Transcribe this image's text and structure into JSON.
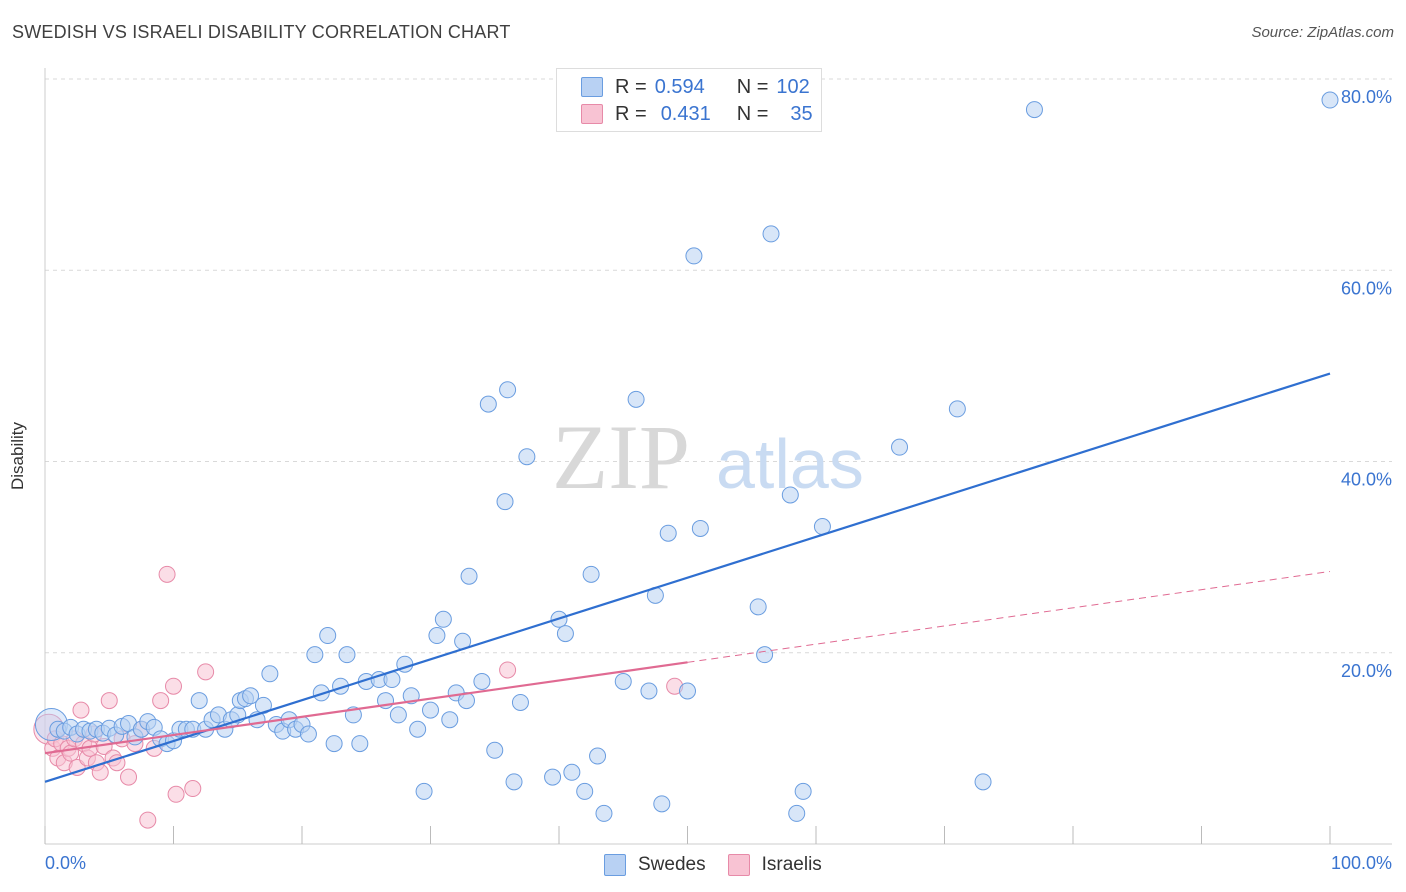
{
  "header": {
    "title": "SWEDISH VS ISRAELI DISABILITY CORRELATION CHART",
    "source": "Source: ZipAtlas.com"
  },
  "watermark": {
    "zip": "ZIP",
    "atlas": "atlas"
  },
  "legend": {
    "rows": [
      {
        "r_label": "R =",
        "r_value": "0.594",
        "n_label": "N =",
        "n_value": "102"
      },
      {
        "r_label": "R =",
        "r_value": "0.431",
        "n_label": "N =",
        "n_value": "35"
      }
    ]
  },
  "bottom_legend": {
    "items": [
      "Swedes",
      "Israelis"
    ]
  },
  "colors": {
    "swedes_fill": "#b8d1f3",
    "swedes_stroke": "#6a9de0",
    "swedes_line": "#2f6fd0",
    "israelis_fill": "#f8c3d3",
    "israelis_stroke": "#e78aa8",
    "israelis_line": "#e06a92",
    "grid": "#d9d9d9",
    "tick_label": "#3a74d0"
  },
  "chart_data": {
    "type": "scatter",
    "title": "SWEDISH VS ISRAELI DISABILITY CORRELATION CHART",
    "xlabel": "",
    "ylabel": "Disability",
    "xlim": [
      0,
      100
    ],
    "ylim": [
      0,
      80
    ],
    "x_tick_labels": [
      {
        "value": 0,
        "label": "0.0%"
      },
      {
        "value": 100,
        "label": "100.0%"
      }
    ],
    "y_tick_labels": [
      {
        "value": 20,
        "label": "20.0%"
      },
      {
        "value": 40,
        "label": "40.0%"
      },
      {
        "value": 60,
        "label": "60.0%"
      },
      {
        "value": 80,
        "label": "80.0%"
      }
    ],
    "x_minor_ticks": [
      0,
      10,
      20,
      30,
      40,
      50,
      60,
      70,
      80,
      90,
      100
    ],
    "grid": true,
    "grid_y": [
      20,
      40,
      60,
      80
    ],
    "series": [
      {
        "name": "Swedes",
        "r": 0.594,
        "n": 102,
        "trend": {
          "x": [
            0,
            100
          ],
          "y": [
            6.5,
            49.2
          ],
          "style": "solid"
        },
        "points": [
          {
            "x": 0.5,
            "y": 12.5,
            "big": true
          },
          {
            "x": 1.0,
            "y": 12.0
          },
          {
            "x": 1.5,
            "y": 11.8
          },
          {
            "x": 2.0,
            "y": 12.2
          },
          {
            "x": 2.5,
            "y": 11.5
          },
          {
            "x": 3.0,
            "y": 12.0
          },
          {
            "x": 3.5,
            "y": 11.8
          },
          {
            "x": 4.0,
            "y": 12.0
          },
          {
            "x": 4.5,
            "y": 11.6
          },
          {
            "x": 5.0,
            "y": 12.1
          },
          {
            "x": 5.5,
            "y": 11.4
          },
          {
            "x": 6.0,
            "y": 12.3
          },
          {
            "x": 6.5,
            "y": 12.6
          },
          {
            "x": 7.0,
            "y": 11.2
          },
          {
            "x": 7.5,
            "y": 12.0
          },
          {
            "x": 8.0,
            "y": 12.8
          },
          {
            "x": 8.5,
            "y": 12.2
          },
          {
            "x": 9.0,
            "y": 11.0
          },
          {
            "x": 9.5,
            "y": 10.5
          },
          {
            "x": 10.0,
            "y": 10.8
          },
          {
            "x": 10.5,
            "y": 12.0
          },
          {
            "x": 11.0,
            "y": 12.0
          },
          {
            "x": 11.5,
            "y": 12.0
          },
          {
            "x": 12.0,
            "y": 15.0
          },
          {
            "x": 12.5,
            "y": 12.0
          },
          {
            "x": 13.0,
            "y": 13.0
          },
          {
            "x": 13.5,
            "y": 13.5
          },
          {
            "x": 14.0,
            "y": 12.0
          },
          {
            "x": 14.5,
            "y": 13.0
          },
          {
            "x": 15.0,
            "y": 13.5
          },
          {
            "x": 15.2,
            "y": 15.0
          },
          {
            "x": 15.6,
            "y": 15.2
          },
          {
            "x": 16.0,
            "y": 15.5
          },
          {
            "x": 16.5,
            "y": 13.0
          },
          {
            "x": 17.0,
            "y": 14.5
          },
          {
            "x": 17.5,
            "y": 17.8
          },
          {
            "x": 18.0,
            "y": 12.5
          },
          {
            "x": 18.5,
            "y": 11.8
          },
          {
            "x": 19.0,
            "y": 13.0
          },
          {
            "x": 19.5,
            "y": 12.0
          },
          {
            "x": 20.0,
            "y": 12.5
          },
          {
            "x": 20.5,
            "y": 11.5
          },
          {
            "x": 21.0,
            "y": 19.8
          },
          {
            "x": 21.5,
            "y": 15.8
          },
          {
            "x": 22.0,
            "y": 21.8
          },
          {
            "x": 22.5,
            "y": 10.5
          },
          {
            "x": 23.0,
            "y": 16.5
          },
          {
            "x": 23.5,
            "y": 19.8
          },
          {
            "x": 24.0,
            "y": 13.5
          },
          {
            "x": 24.5,
            "y": 10.5
          },
          {
            "x": 25.0,
            "y": 17.0
          },
          {
            "x": 26.0,
            "y": 17.2
          },
          {
            "x": 26.5,
            "y": 15.0
          },
          {
            "x": 27.0,
            "y": 17.2
          },
          {
            "x": 27.5,
            "y": 13.5
          },
          {
            "x": 28.0,
            "y": 18.8
          },
          {
            "x": 28.5,
            "y": 15.5
          },
          {
            "x": 29.0,
            "y": 12.0
          },
          {
            "x": 29.5,
            "y": 5.5
          },
          {
            "x": 30.0,
            "y": 14.0
          },
          {
            "x": 30.5,
            "y": 21.8
          },
          {
            "x": 31.0,
            "y": 23.5
          },
          {
            "x": 31.5,
            "y": 13.0
          },
          {
            "x": 32.0,
            "y": 15.8
          },
          {
            "x": 32.5,
            "y": 21.2
          },
          {
            "x": 32.8,
            "y": 15.0
          },
          {
            "x": 33.0,
            "y": 28.0
          },
          {
            "x": 34.0,
            "y": 17.0
          },
          {
            "x": 34.5,
            "y": 46.0
          },
          {
            "x": 35.0,
            "y": 9.8
          },
          {
            "x": 35.8,
            "y": 35.8
          },
          {
            "x": 36.0,
            "y": 47.5
          },
          {
            "x": 36.5,
            "y": 6.5
          },
          {
            "x": 37.0,
            "y": 14.8
          },
          {
            "x": 37.5,
            "y": 40.5
          },
          {
            "x": 39.5,
            "y": 7.0
          },
          {
            "x": 40.0,
            "y": 23.5
          },
          {
            "x": 40.5,
            "y": 22.0
          },
          {
            "x": 41.0,
            "y": 7.5
          },
          {
            "x": 42.0,
            "y": 5.5
          },
          {
            "x": 42.5,
            "y": 28.2
          },
          {
            "x": 43.0,
            "y": 9.2
          },
          {
            "x": 43.5,
            "y": 3.2
          },
          {
            "x": 45.0,
            "y": 17.0
          },
          {
            "x": 46.0,
            "y": 46.5
          },
          {
            "x": 47.0,
            "y": 16.0
          },
          {
            "x": 47.5,
            "y": 26.0
          },
          {
            "x": 48.0,
            "y": 4.2
          },
          {
            "x": 48.5,
            "y": 32.5
          },
          {
            "x": 50.0,
            "y": 16.0
          },
          {
            "x": 50.5,
            "y": 61.5
          },
          {
            "x": 51.0,
            "y": 33.0
          },
          {
            "x": 55.5,
            "y": 24.8
          },
          {
            "x": 56.0,
            "y": 19.8
          },
          {
            "x": 56.5,
            "y": 63.8
          },
          {
            "x": 58.0,
            "y": 36.5
          },
          {
            "x": 58.5,
            "y": 3.2
          },
          {
            "x": 59.0,
            "y": 5.5
          },
          {
            "x": 60.5,
            "y": 33.2
          },
          {
            "x": 66.5,
            "y": 41.5
          },
          {
            "x": 71.0,
            "y": 45.5
          },
          {
            "x": 73.0,
            "y": 6.5
          },
          {
            "x": 77.0,
            "y": 76.8
          },
          {
            "x": 100.0,
            "y": 77.8
          }
        ]
      },
      {
        "name": "Israelis",
        "r": 0.431,
        "n": 35,
        "trend": {
          "x": [
            0,
            50
          ],
          "y": [
            9.5,
            19.0
          ],
          "style": "solid"
        },
        "trend_extension": {
          "x": [
            50,
            100
          ],
          "y": [
            19.0,
            28.5
          ],
          "style": "dashed"
        },
        "points": [
          {
            "x": 0.3,
            "y": 12.0,
            "big": true
          },
          {
            "x": 0.6,
            "y": 10.0
          },
          {
            "x": 0.8,
            "y": 11.0
          },
          {
            "x": 1.0,
            "y": 9.0
          },
          {
            "x": 1.3,
            "y": 10.5
          },
          {
            "x": 1.5,
            "y": 8.5
          },
          {
            "x": 1.8,
            "y": 10.0
          },
          {
            "x": 2.0,
            "y": 9.5
          },
          {
            "x": 2.3,
            "y": 11.0
          },
          {
            "x": 2.5,
            "y": 8.0
          },
          {
            "x": 2.8,
            "y": 14.0
          },
          {
            "x": 3.0,
            "y": 10.5
          },
          {
            "x": 3.3,
            "y": 9.0
          },
          {
            "x": 3.5,
            "y": 10.0
          },
          {
            "x": 3.8,
            "y": 11.5
          },
          {
            "x": 4.0,
            "y": 8.5
          },
          {
            "x": 4.3,
            "y": 7.5
          },
          {
            "x": 4.6,
            "y": 10.2
          },
          {
            "x": 5.0,
            "y": 15.0
          },
          {
            "x": 5.3,
            "y": 9.0
          },
          {
            "x": 5.6,
            "y": 8.5
          },
          {
            "x": 6.0,
            "y": 11.0
          },
          {
            "x": 6.5,
            "y": 7.0
          },
          {
            "x": 7.0,
            "y": 10.5
          },
          {
            "x": 7.5,
            "y": 12.0
          },
          {
            "x": 8.0,
            "y": 2.5
          },
          {
            "x": 8.5,
            "y": 10.0
          },
          {
            "x": 9.0,
            "y": 15.0
          },
          {
            "x": 9.5,
            "y": 28.2
          },
          {
            "x": 10.0,
            "y": 16.5
          },
          {
            "x": 10.2,
            "y": 5.2
          },
          {
            "x": 11.5,
            "y": 5.8
          },
          {
            "x": 12.5,
            "y": 18.0
          },
          {
            "x": 36.0,
            "y": 18.2
          },
          {
            "x": 49.0,
            "y": 16.5
          }
        ]
      }
    ]
  }
}
